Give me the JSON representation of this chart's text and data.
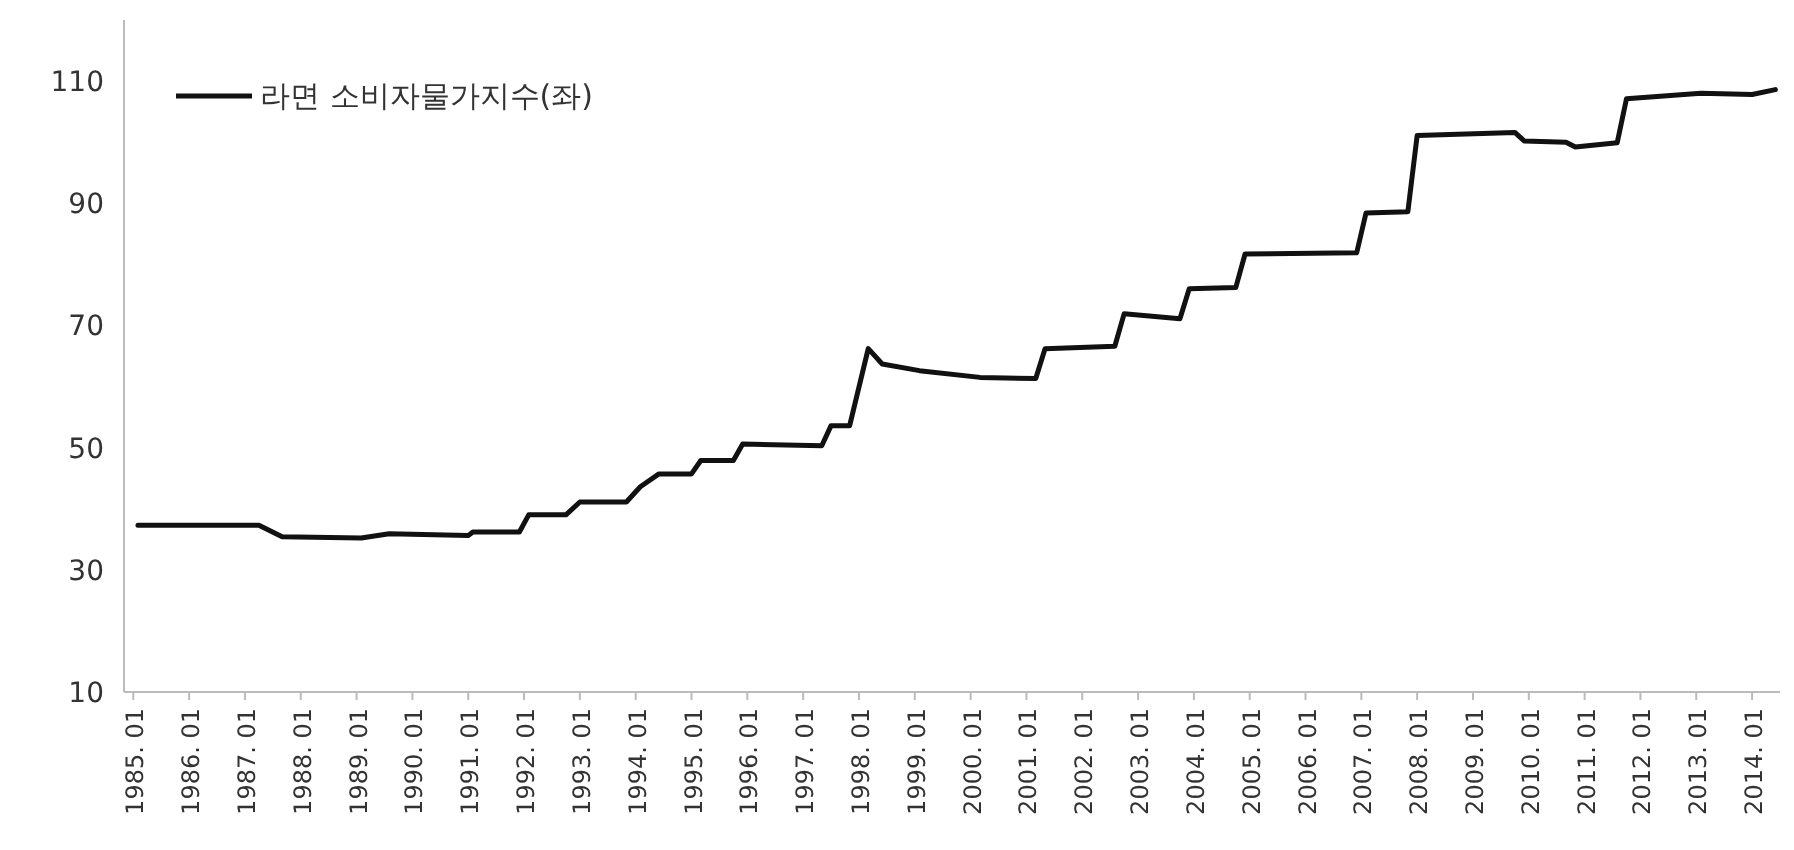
{
  "chart_data": {
    "type": "line",
    "legend": "top left",
    "x": [
      "1985-02",
      "1987-04",
      "1987-09",
      "1989-02",
      "1989-08",
      "1991-01",
      "1991-02",
      "1991-12",
      "1992-02",
      "1992-10",
      "1993-01",
      "1993-11",
      "1994-02",
      "1994-06",
      "1995-01",
      "1995-03",
      "1995-10",
      "1995-12",
      "1997-05",
      "1997-07",
      "1997-11",
      "1998-03",
      "1998-06",
      "1999-02",
      "2000-03",
      "2001-03",
      "2001-05",
      "2002-08",
      "2002-10",
      "2003-10",
      "2003-12",
      "2004-10",
      "2004-12",
      "2006-12",
      "2007-02",
      "2007-11",
      "2008-01",
      "2009-10",
      "2009-12",
      "2010-09",
      "2010-11",
      "2011-08",
      "2011-10",
      "2013-02",
      "2014-01",
      "2014-06"
    ],
    "series": [
      {
        "name": "라면 소비자물가지수(좌)",
        "color": "#111111",
        "values": [
          37.3,
          37.3,
          35.4,
          35.2,
          35.9,
          35.6,
          36.2,
          36.2,
          39.0,
          39.0,
          41.1,
          41.1,
          43.6,
          45.7,
          45.7,
          47.9,
          47.9,
          50.6,
          50.3,
          53.6,
          53.6,
          66.2,
          63.7,
          62.6,
          61.5,
          61.3,
          66.2,
          66.6,
          71.9,
          71.1,
          76.0,
          76.2,
          81.7,
          81.9,
          88.4,
          88.6,
          101.1,
          101.6,
          100.2,
          100.0,
          99.2,
          99.9,
          107.1,
          108.0,
          107.8,
          108.6
        ]
      }
    ],
    "xlim": [
      "1984-11",
      "2014-07"
    ],
    "xticks": [
      {
        "value": "1985-01",
        "label": "1985. 01"
      },
      {
        "value": "1986-01",
        "label": "1986. 01"
      },
      {
        "value": "1987-01",
        "label": "1987. 01"
      },
      {
        "value": "1988-01",
        "label": "1988. 01"
      },
      {
        "value": "1989-01",
        "label": "1989. 01"
      },
      {
        "value": "1990-01",
        "label": "1990. 01"
      },
      {
        "value": "1991-01",
        "label": "1991. 01"
      },
      {
        "value": "1992-01",
        "label": "1992. 01"
      },
      {
        "value": "1993-01",
        "label": "1993. 01"
      },
      {
        "value": "1994-01",
        "label": "1994. 01"
      },
      {
        "value": "1995-01",
        "label": "1995. 01"
      },
      {
        "value": "1996-01",
        "label": "1996. 01"
      },
      {
        "value": "1997-01",
        "label": "1997. 01"
      },
      {
        "value": "1998-01",
        "label": "1998. 01"
      },
      {
        "value": "1999-01",
        "label": "1999. 01"
      },
      {
        "value": "2000-01",
        "label": "2000. 01"
      },
      {
        "value": "2001-01",
        "label": "2001. 01"
      },
      {
        "value": "2002-01",
        "label": "2002. 01"
      },
      {
        "value": "2003-01",
        "label": "2003. 01"
      },
      {
        "value": "2004-01",
        "label": "2004. 01"
      },
      {
        "value": "2005-01",
        "label": "2005. 01"
      },
      {
        "value": "2006-01",
        "label": "2006. 01"
      },
      {
        "value": "2007-01",
        "label": "2007. 01"
      },
      {
        "value": "2008-01",
        "label": "2008. 01"
      },
      {
        "value": "2009-01",
        "label": "2009. 01"
      },
      {
        "value": "2010-01",
        "label": "2010. 01"
      },
      {
        "value": "2011-01",
        "label": "2011. 01"
      },
      {
        "value": "2012-01",
        "label": "2012. 01"
      },
      {
        "value": "2013-01",
        "label": "2013. 01"
      },
      {
        "value": "2014-01",
        "label": "2014. 01"
      }
    ],
    "ylim": [
      10,
      120
    ],
    "yticks": [
      10,
      30,
      50,
      70,
      90,
      110
    ],
    "marker": "none",
    "line_style": "solid"
  }
}
